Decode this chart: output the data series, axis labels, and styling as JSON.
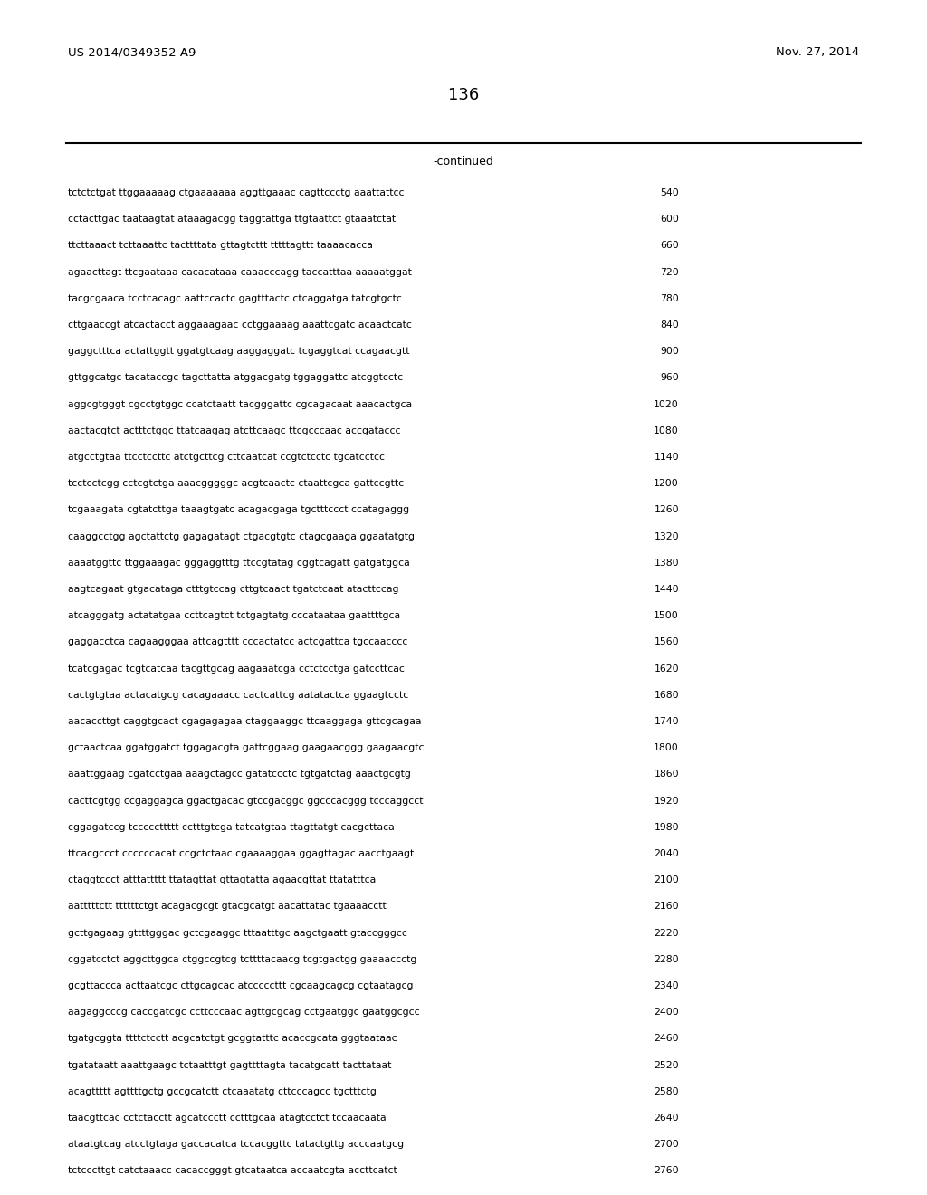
{
  "header_left": "US 2014/0349352 A9",
  "header_right": "Nov. 27, 2014",
  "page_number": "136",
  "continued_label": "-continued",
  "background_color": "#ffffff",
  "text_color": "#000000",
  "lines": [
    {
      "seq": "tctctctgat ttggaaaaag ctgaaaaaaa aggttgaaac cagttccctg aaattattcc",
      "num": "540"
    },
    {
      "seq": "cctacttgac taataagtat ataaagacgg taggtattga ttgtaattct gtaaatctat",
      "num": "600"
    },
    {
      "seq": "ttcttaaact tcttaaattc tacttttata gttagtcttt tttttagttt taaaacacca",
      "num": "660"
    },
    {
      "seq": "agaacttagt ttcgaataaa cacacataaa caaacccagg taccatttaa aaaaatggat",
      "num": "720"
    },
    {
      "seq": "tacgcgaaca tcctcacagc aattccactc gagtttactc ctcaggatga tatcgtgctc",
      "num": "780"
    },
    {
      "seq": "cttgaaccgt atcactacct aggaaagaac cctggaaaag aaattcgatc acaactcatc",
      "num": "840"
    },
    {
      "seq": "gaggctttca actattggtt ggatgtcaag aaggaggatc tcgaggtcat ccagaacgtt",
      "num": "900"
    },
    {
      "seq": "gttggcatgc tacataccgc tagcttatta atggacgatg tggaggattc atcggtcctc",
      "num": "960"
    },
    {
      "seq": "aggcgtgggt cgcctgtggc ccatctaatt tacgggattc cgcagacaat aaacactgca",
      "num": "1020"
    },
    {
      "seq": "aactacgtct actttctggc ttatcaagag atcttcaagc ttcgcccaac accgataccc",
      "num": "1080"
    },
    {
      "seq": "atgcctgtaa ttcctccttc atctgcttcg cttcaatcat ccgtctcctc tgcatcctcc",
      "num": "1140"
    },
    {
      "seq": "tcctcctcgg cctcgtctga aaacgggggc acgtcaactc ctaattcgca gattccgttc",
      "num": "1200"
    },
    {
      "seq": "tcgaaagata cgtatcttga taaagtgatc acagacgaga tgctttccct ccatagaggg",
      "num": "1260"
    },
    {
      "seq": "caaggcctgg agctattctg gagagatagt ctgacgtgtc ctagcgaaga ggaatatgtg",
      "num": "1320"
    },
    {
      "seq": "aaaatggttc ttggaaagac gggaggtttg ttccgtatag cggtcagatt gatgatggca",
      "num": "1380"
    },
    {
      "seq": "aagtcagaat gtgacataga ctttgtccag cttgtcaact tgatctcaat atacttccag",
      "num": "1440"
    },
    {
      "seq": "atcagggatg actatatgaa ccttcagtct tctgagtatg cccataataa gaattttgca",
      "num": "1500"
    },
    {
      "seq": "gaggacctca cagaagggaa attcagtttt cccactatcc actcgattca tgccaacccc",
      "num": "1560"
    },
    {
      "seq": "tcatcgagac tcgtcatcaa tacgttgcag aagaaatcga cctctcctga gatccttcac",
      "num": "1620"
    },
    {
      "seq": "cactgtgtaa actacatgcg cacagaaacc cactcattcg aatatactca ggaagtcctc",
      "num": "1680"
    },
    {
      "seq": "aacaccttgt caggtgcact cgagagagaa ctaggaaggc ttcaaggaga gttcgcagaa",
      "num": "1740"
    },
    {
      "seq": "gctaactcaa ggatggatct tggagacgta gattcggaag gaagaacggg gaagaacgtc",
      "num": "1800"
    },
    {
      "seq": "aaattggaag cgatcctgaa aaagctagcc gatatccctc tgtgatctag aaactgcgtg",
      "num": "1860"
    },
    {
      "seq": "cacttcgtgg ccgaggagca ggactgacac gtccgacggc ggcccacggg tcccaggcct",
      "num": "1920"
    },
    {
      "seq": "cggagatccg tcccccttttt cctttgtcga tatcatgtaa ttagttatgt cacgcttaca",
      "num": "1980"
    },
    {
      "seq": "ttcacgccct ccccccacat ccgctctaac cgaaaaggaa ggagttagac aacctgaagt",
      "num": "2040"
    },
    {
      "seq": "ctaggtccct atttattttt ttatagttat gttagtatta agaacgttat ttatatttca",
      "num": "2100"
    },
    {
      "seq": "aatttttctt ttttttctgt acagacgcgt gtacgcatgt aacattatac tgaaaacctt",
      "num": "2160"
    },
    {
      "seq": "gcttgagaag gttttgggac gctcgaaggc tttaatttgc aagctgaatt gtaccgggcc",
      "num": "2220"
    },
    {
      "seq": "cggatcctct aggcttggca ctggccgtcg tcttttacaacg tcgtgactgg gaaaaccctg",
      "num": "2280"
    },
    {
      "seq": "gcgttacccа acttaatcgc cttgcagcac atcccccttt cgcaagcagcg cgtaatagcg",
      "num": "2340"
    },
    {
      "seq": "aagaggcccg caccgatcgc ccttcccaac agttgcgcag cctgaatggc gaatggcgcc",
      "num": "2400"
    },
    {
      "seq": "tgatgcggta ttttctcctt acgcatctgt gcggtatttc acaccgcata gggtaataac",
      "num": "2460"
    },
    {
      "seq": "tgatataatt aaattgaagc tctaatttgt gagttttagta tacatgcatt tacttataat",
      "num": "2520"
    },
    {
      "seq": "acagttttt agttttgctg gccgcatctt ctcaaatatg cttcccagcc tgctttctg",
      "num": "2580"
    },
    {
      "seq": "taacgttcac cctctacctt agcatccctt cctttgcaa atagtcctct tccaacaata",
      "num": "2640"
    },
    {
      "seq": "ataatgtcag atcctgtaga gaccacatca tccacggttc tatactgttg acccaatgcg",
      "num": "2700"
    },
    {
      "seq": "tctcccttgt catctaaacc cacaccgggt gtcataatca accaatcgta accttcatct",
      "num": "2760"
    }
  ]
}
